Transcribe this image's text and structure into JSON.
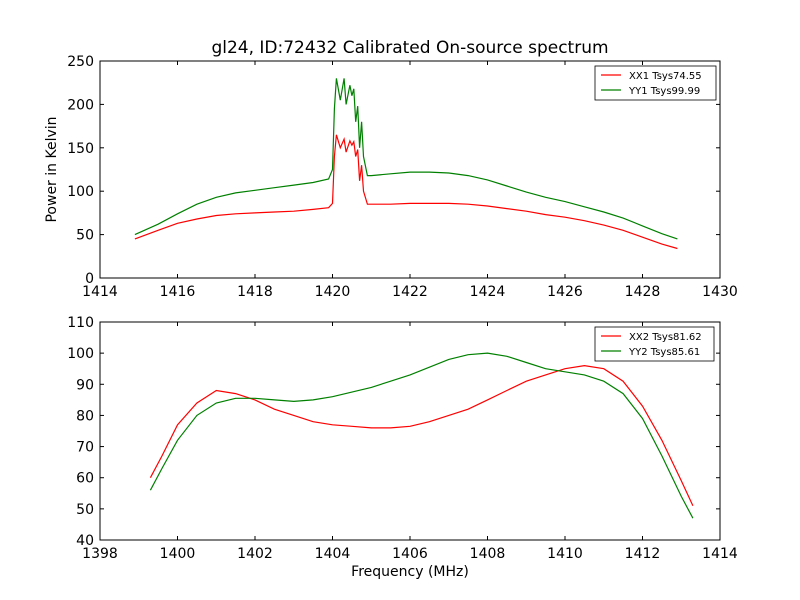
{
  "figure": {
    "title": "gl24, ID:72432 Calibrated On-source spectrum"
  },
  "chart_data": [
    {
      "type": "line",
      "title": "gl24, ID:72432 Calibrated On-source spectrum",
      "xlabel": "",
      "ylabel": "Power in Kelvin",
      "xlim": [
        1414,
        1430
      ],
      "ylim": [
        0,
        250
      ],
      "xticks": [
        "1414",
        "1416",
        "1418",
        "1420",
        "1422",
        "1424",
        "1426",
        "1428",
        "1430"
      ],
      "yticks": [
        "0",
        "50",
        "100",
        "150",
        "200",
        "250"
      ],
      "grid": false,
      "legend_position": "top-right",
      "series": [
        {
          "name": "XX1 Tsys74.55",
          "color": "#ff0000",
          "x": [
            1414.9,
            1415.5,
            1416.0,
            1416.5,
            1417.0,
            1417.5,
            1418.0,
            1418.5,
            1419.0,
            1419.5,
            1419.9,
            1420.0,
            1420.05,
            1420.1,
            1420.2,
            1420.3,
            1420.35,
            1420.45,
            1420.5,
            1420.55,
            1420.6,
            1420.65,
            1420.7,
            1420.75,
            1420.8,
            1420.9,
            1421.0,
            1421.5,
            1422.0,
            1422.5,
            1423.0,
            1423.5,
            1424.0,
            1424.5,
            1425.0,
            1425.5,
            1426.0,
            1426.5,
            1427.0,
            1427.5,
            1428.0,
            1428.5,
            1428.9
          ],
          "values": [
            45,
            55,
            63,
            68,
            72,
            74,
            75,
            76,
            77,
            79,
            81,
            86,
            140,
            165,
            150,
            160,
            145,
            158,
            153,
            157,
            140,
            148,
            112,
            130,
            100,
            85,
            85,
            85,
            86,
            86,
            86,
            85,
            83,
            80,
            77,
            73,
            70,
            66,
            61,
            55,
            47,
            39,
            34
          ]
        },
        {
          "name": "YY1 Tsys99.99",
          "color": "#008000",
          "x": [
            1414.9,
            1415.5,
            1416.0,
            1416.5,
            1417.0,
            1417.5,
            1418.0,
            1418.5,
            1419.0,
            1419.5,
            1419.9,
            1420.0,
            1420.05,
            1420.1,
            1420.2,
            1420.3,
            1420.35,
            1420.45,
            1420.5,
            1420.55,
            1420.6,
            1420.65,
            1420.7,
            1420.75,
            1420.8,
            1420.9,
            1421.0,
            1421.5,
            1422.0,
            1422.5,
            1423.0,
            1423.5,
            1424.0,
            1424.5,
            1425.0,
            1425.5,
            1426.0,
            1426.5,
            1427.0,
            1427.5,
            1428.0,
            1428.5,
            1428.9
          ],
          "values": [
            50,
            62,
            74,
            85,
            93,
            98,
            101,
            104,
            107,
            110,
            114,
            125,
            195,
            230,
            205,
            230,
            200,
            222,
            210,
            218,
            180,
            198,
            150,
            180,
            140,
            118,
            118,
            120,
            122,
            122,
            121,
            118,
            113,
            106,
            99,
            93,
            88,
            82,
            76,
            69,
            60,
            51,
            45
          ]
        }
      ]
    },
    {
      "type": "line",
      "title": "",
      "xlabel": "Frequency (MHz)",
      "ylabel": "",
      "xlim": [
        1398,
        1414
      ],
      "ylim": [
        40,
        110
      ],
      "xticks": [
        "1398",
        "1400",
        "1402",
        "1404",
        "1406",
        "1408",
        "1410",
        "1412",
        "1414"
      ],
      "yticks": [
        "40",
        "50",
        "60",
        "70",
        "80",
        "90",
        "100",
        "110"
      ],
      "grid": false,
      "legend_position": "top-right",
      "series": [
        {
          "name": "XX2 Tsys81.62",
          "color": "#ff0000",
          "x": [
            1399.3,
            1399.6,
            1400.0,
            1400.5,
            1401.0,
            1401.5,
            1402.0,
            1402.5,
            1403.0,
            1403.5,
            1404.0,
            1404.5,
            1405.0,
            1405.5,
            1406.0,
            1406.5,
            1407.0,
            1407.5,
            1408.0,
            1408.5,
            1409.0,
            1409.5,
            1410.0,
            1410.5,
            1411.0,
            1411.5,
            1412.0,
            1412.5,
            1413.0,
            1413.3
          ],
          "values": [
            60,
            67,
            77,
            84,
            88,
            87,
            85,
            82,
            80,
            78,
            77,
            76.5,
            76,
            76,
            76.5,
            78,
            80,
            82,
            85,
            88,
            91,
            93,
            95,
            96,
            95,
            91,
            83,
            72,
            59,
            51
          ]
        },
        {
          "name": "YY2 Tsys85.61",
          "color": "#008000",
          "x": [
            1399.3,
            1399.6,
            1400.0,
            1400.5,
            1401.0,
            1401.5,
            1402.0,
            1402.5,
            1403.0,
            1403.5,
            1404.0,
            1404.5,
            1405.0,
            1405.5,
            1406.0,
            1406.5,
            1407.0,
            1407.5,
            1408.0,
            1408.5,
            1409.0,
            1409.5,
            1410.0,
            1410.5,
            1411.0,
            1411.5,
            1412.0,
            1412.5,
            1413.0,
            1413.3
          ],
          "values": [
            56,
            63,
            72,
            80,
            84,
            85.5,
            85.5,
            85,
            84.5,
            85,
            86,
            87.5,
            89,
            91,
            93,
            95.5,
            98,
            99.5,
            100,
            99,
            97,
            95,
            94,
            93,
            91,
            87,
            79,
            67,
            54,
            47
          ]
        }
      ]
    }
  ]
}
